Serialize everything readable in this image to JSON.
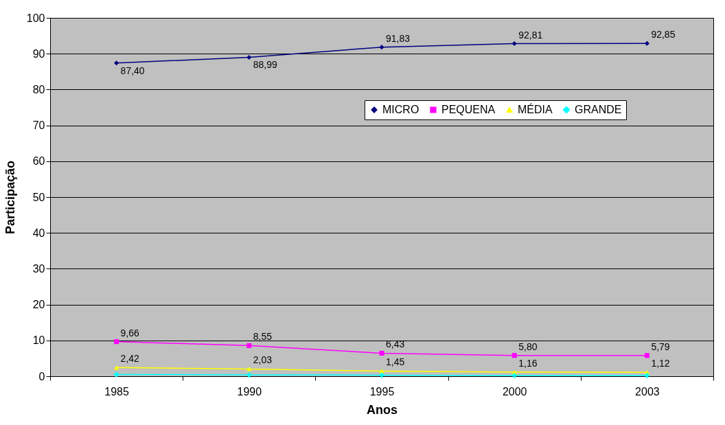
{
  "chart_data": {
    "type": "line",
    "xlabel": "Anos",
    "ylabel": "Participação",
    "categories": [
      "1985",
      "1990",
      "1995",
      "2000",
      "2003"
    ],
    "series": [
      {
        "name": "MICRO",
        "color": "#000080",
        "marker": "diamond",
        "values": [
          87.4,
          88.99,
          91.83,
          92.81,
          92.85
        ],
        "value_labels": [
          "87,40",
          "88,99",
          "91,83",
          "92,81",
          "92,85"
        ]
      },
      {
        "name": "PEQUENA",
        "color": "#ff00ff",
        "marker": "square",
        "values": [
          9.66,
          8.55,
          6.43,
          5.8,
          5.79
        ],
        "value_labels": [
          "9,66",
          "8,55",
          "6,43",
          "5,80",
          "5,79"
        ]
      },
      {
        "name": "MÉDIA",
        "color": "#ffff00",
        "marker": "triangle",
        "values": [
          2.42,
          2.03,
          1.45,
          1.16,
          1.12
        ],
        "value_labels": [
          "2,42",
          "2,03",
          "1,45",
          "1,16",
          "1,12"
        ]
      },
      {
        "name": "GRANDE",
        "color": "#00ffff",
        "marker": "cross",
        "values": [
          0.5,
          0.4,
          0.3,
          0.2,
          0.2
        ]
      }
    ],
    "ylim": [
      0,
      100
    ],
    "yticks": [
      0,
      10,
      20,
      30,
      40,
      50,
      60,
      70,
      80,
      90,
      100
    ],
    "grid": "y",
    "legend": "top right"
  }
}
